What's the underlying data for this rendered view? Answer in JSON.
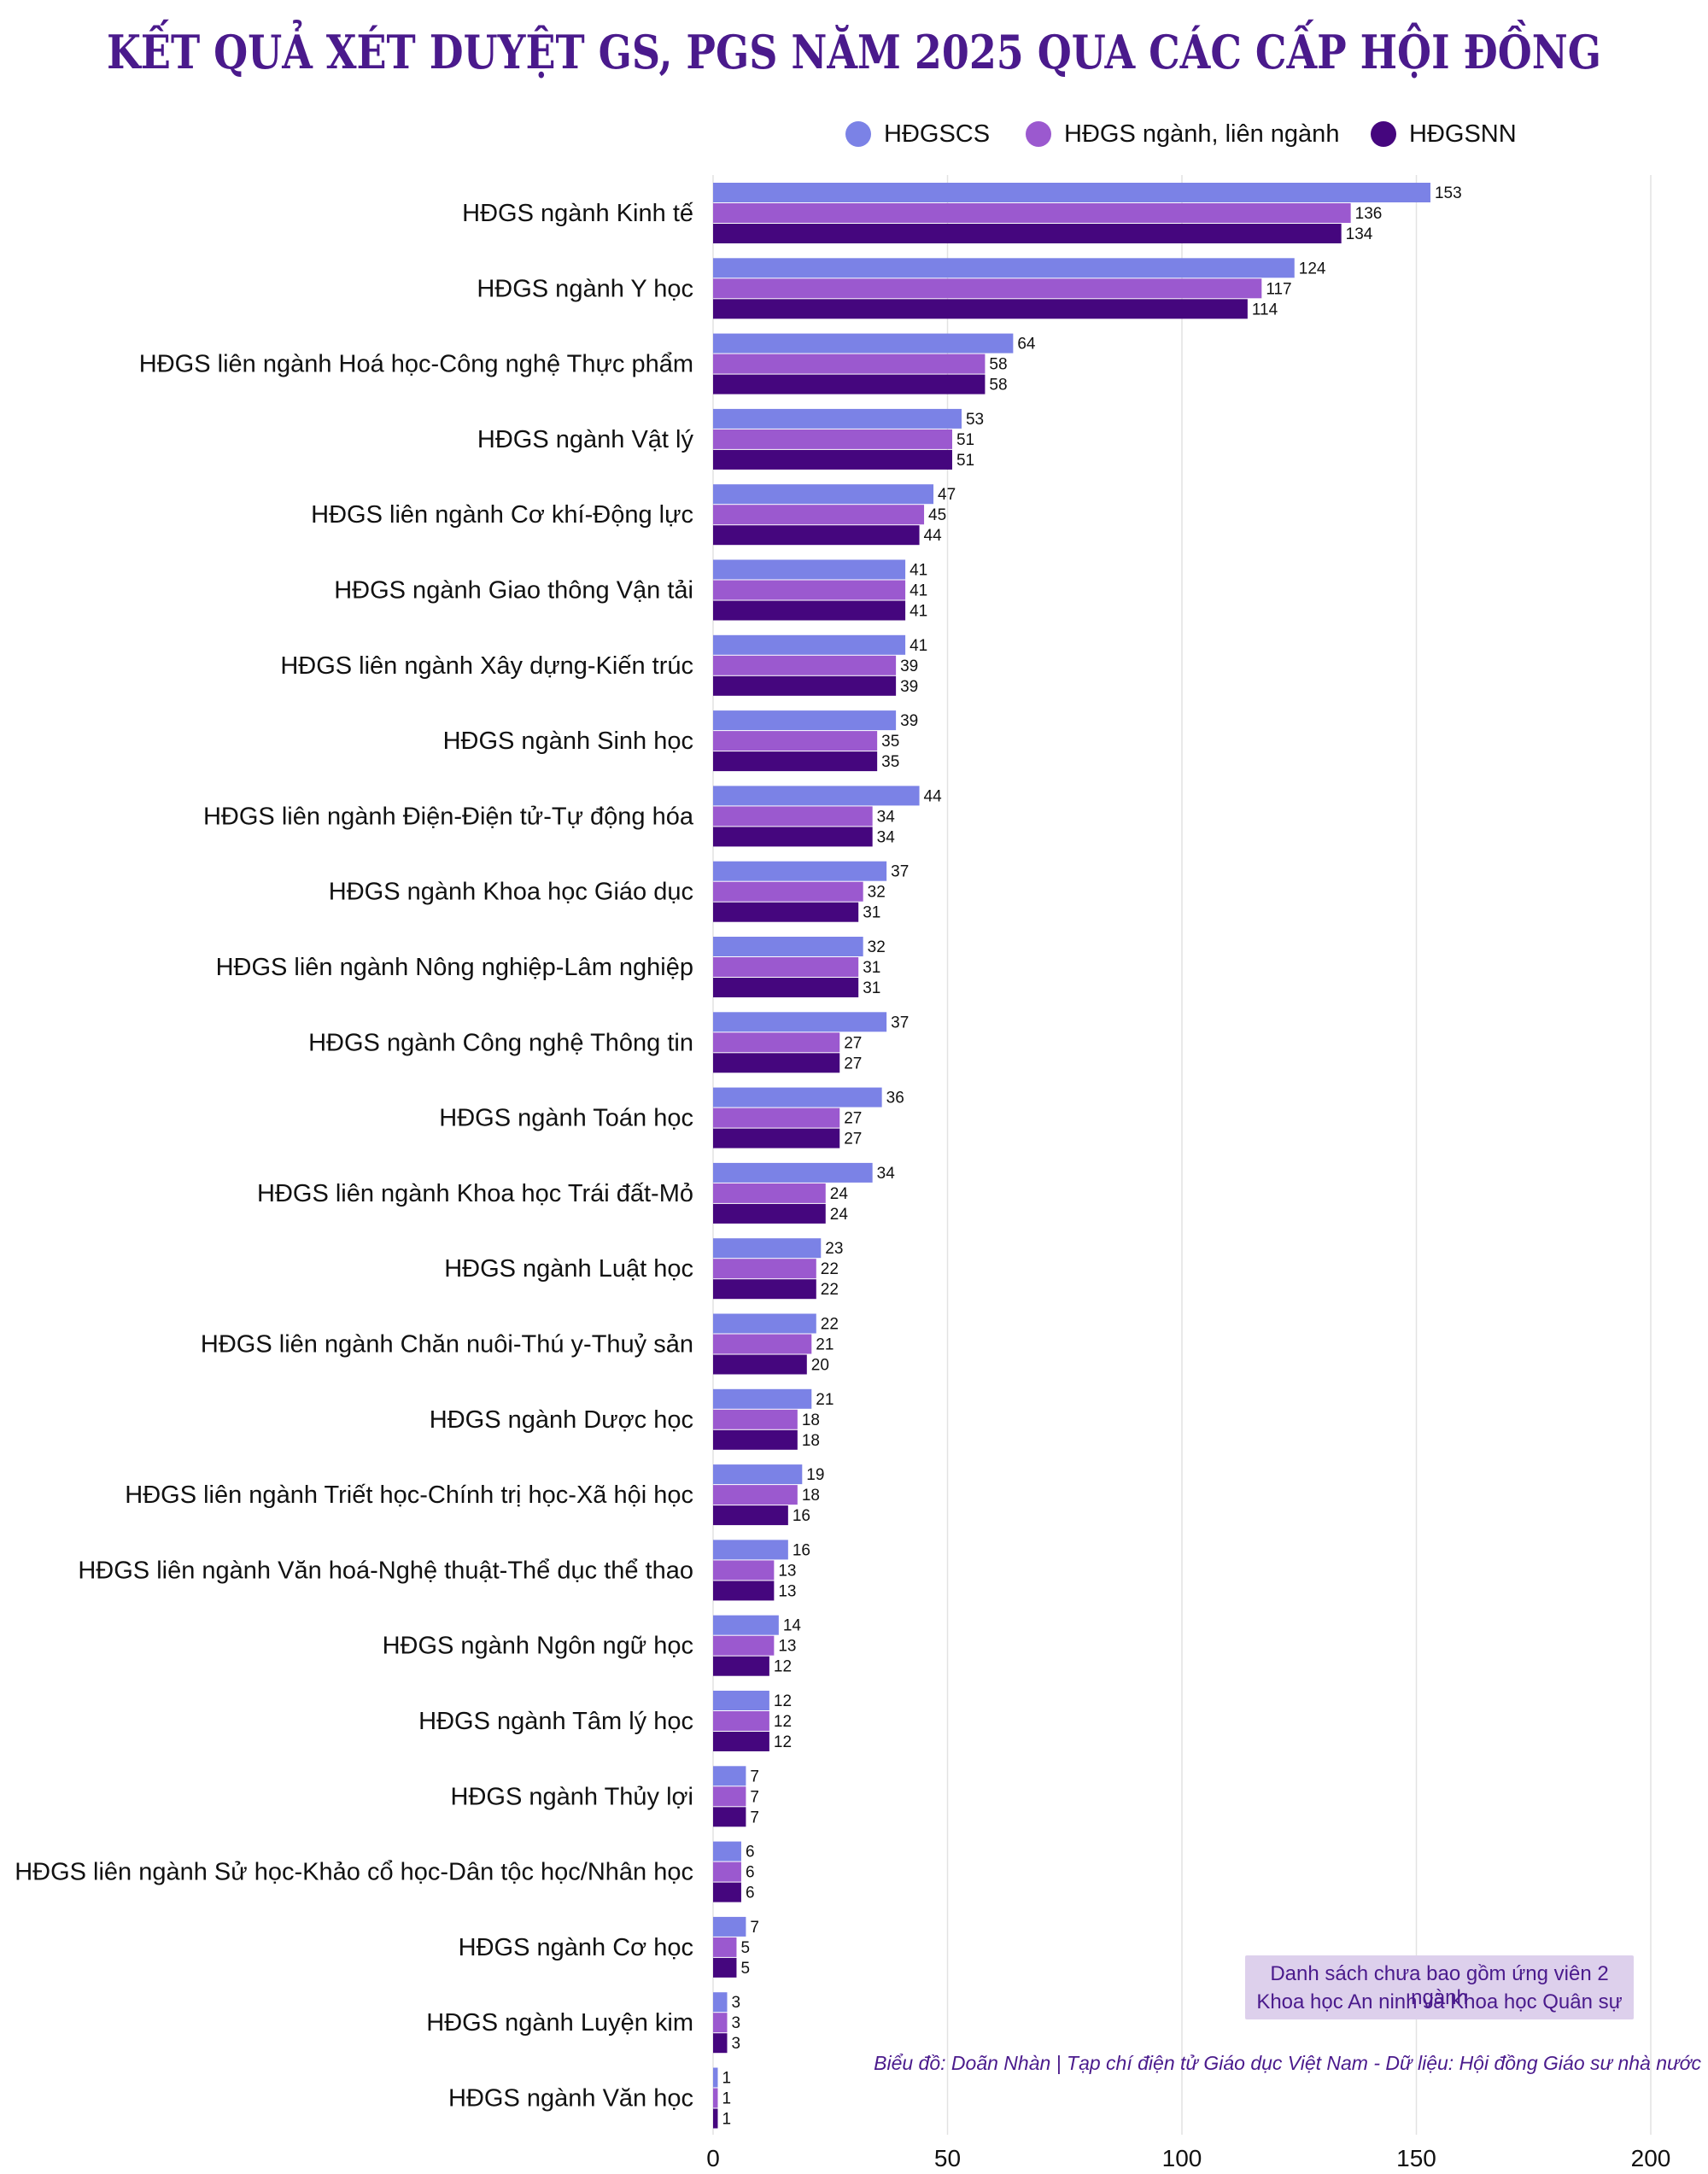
{
  "chart_data": {
    "type": "bar",
    "orientation": "horizontal",
    "title": "KẾT QUẢ XÉT DUYỆT GS, PGS NĂM 2025 QUA CÁC CẤP HỘI ĐỒNG",
    "legend_position": "top-right",
    "xlim": [
      0,
      200
    ],
    "xticks": [
      0,
      50,
      100,
      150,
      200
    ],
    "grid": true,
    "categories": [
      "HĐGS ngành Kinh tế",
      "HĐGS ngành Y học",
      "HĐGS liên ngành Hoá học-Công nghệ Thực phẩm",
      "HĐGS ngành Vật lý",
      "HĐGS liên ngành Cơ khí-Động lực",
      "HĐGS ngành Giao thông Vận tải",
      "HĐGS liên ngành Xây dựng-Kiến trúc",
      "HĐGS ngành Sinh học",
      "HĐGS liên ngành Điện-Điện tử-Tự động hóa",
      "HĐGS ngành Khoa học Giáo dục",
      "HĐGS liên ngành Nông nghiệp-Lâm nghiệp",
      "HĐGS ngành Công nghệ Thông tin",
      "HĐGS ngành Toán học",
      "HĐGS liên ngành Khoa học Trái đất-Mỏ",
      "HĐGS ngành Luật học",
      "HĐGS liên ngành Chăn nuôi-Thú y-Thuỷ sản",
      "HĐGS ngành Dược học",
      "HĐGS liên ngành Triết học-Chính trị học-Xã hội học",
      "HĐGS liên ngành Văn hoá-Nghệ thuật-Thể dục thể thao",
      "HĐGS ngành Ngôn ngữ học",
      "HĐGS ngành Tâm lý học",
      "HĐGS ngành Thủy lợi",
      "HĐGS liên ngành Sử học-Khảo cổ học-Dân tộc học/Nhân học",
      "HĐGS ngành Cơ học",
      "HĐGS ngành Luyện kim",
      "HĐGS ngành Văn học"
    ],
    "series": [
      {
        "name": "HĐGSCS",
        "color": "#7b82e6",
        "values": [
          153,
          124,
          64,
          53,
          47,
          41,
          41,
          39,
          44,
          37,
          32,
          37,
          36,
          34,
          23,
          22,
          21,
          19,
          16,
          14,
          12,
          7,
          6,
          7,
          3,
          1
        ]
      },
      {
        "name": "HĐGS ngành, liên ngành",
        "color": "#9b59cf",
        "values": [
          136,
          117,
          58,
          51,
          45,
          41,
          39,
          35,
          34,
          32,
          31,
          27,
          27,
          24,
          22,
          21,
          18,
          18,
          13,
          13,
          12,
          7,
          6,
          5,
          3,
          1
        ]
      },
      {
        "name": "HĐGSNN",
        "color": "#45067e",
        "values": [
          134,
          114,
          58,
          51,
          44,
          41,
          39,
          35,
          34,
          31,
          31,
          27,
          27,
          24,
          22,
          20,
          18,
          16,
          13,
          12,
          12,
          7,
          6,
          5,
          3,
          1
        ]
      }
    ],
    "note_lines": [
      "Danh sách chưa bao gồm ứng viên 2 ngành",
      "Khoa học An ninh và Khoa học Quân sự"
    ],
    "source": "Biểu đồ: Doãn Nhàn | Tạp chí điện tử Giáo dục Việt Nam  -  Dữ liệu: Hội đồng Giáo sư nhà nước"
  },
  "colors": {
    "title": "#4a1a8c",
    "text": "#111111",
    "grid": "#e2e2e2",
    "note_bg": "#ddd0ec"
  }
}
